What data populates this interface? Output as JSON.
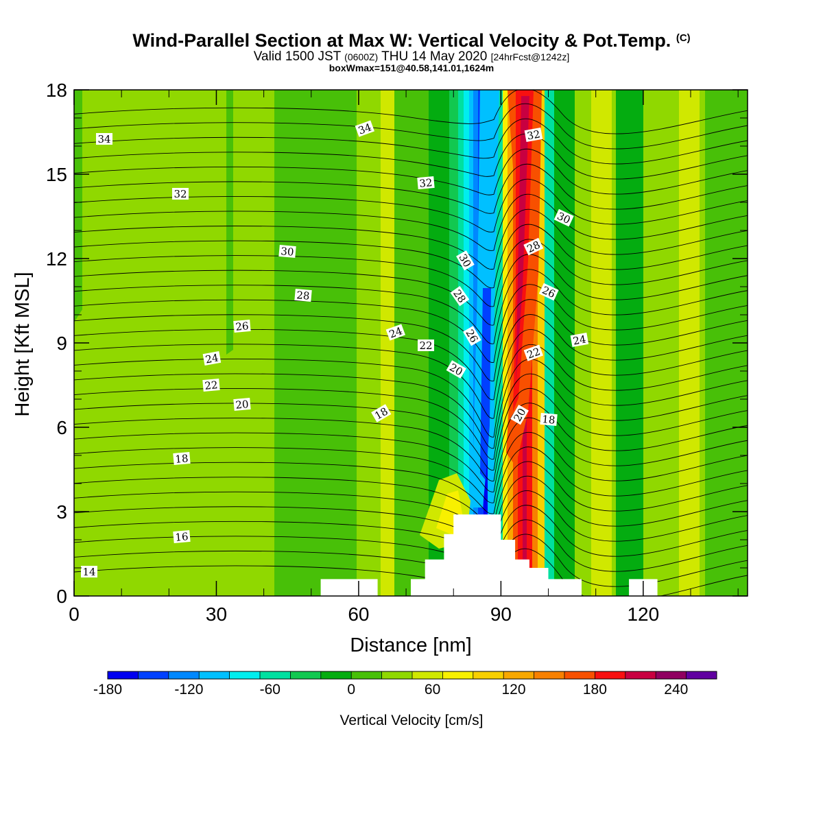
{
  "chart_data": {
    "type": "heatmap",
    "title": "Wind-Parallel Section at Max W: Vertical Velocity & Pot.Temp.",
    "title_mark": "(C)",
    "subtitle_main": "Valid 1500 JST",
    "subtitle_z": "(0600Z)",
    "subtitle_date": "THU 14 May 2020",
    "subtitle_fcst": "[24hrFcst@1242z]",
    "subtitle2": "boxWmax=151@40.58,141.01,1624m",
    "xlabel": "Distance [nm]",
    "ylabel": "Height [Kft MSL]",
    "xlim": [
      0,
      142
    ],
    "ylim": [
      0,
      18
    ],
    "x_ticks": [
      "0",
      "30",
      "60",
      "90",
      "120"
    ],
    "y_ticks": [
      "0",
      "3",
      "6",
      "9",
      "12",
      "15",
      "18"
    ],
    "colorbar": {
      "label": "Vertical Velocity [cm/s]",
      "tick_labels": [
        "-180",
        "-120",
        "-60",
        "0",
        "60",
        "120",
        "180",
        "240"
      ],
      "colors": [
        "#0000f0",
        "#0040ff",
        "#0088ff",
        "#00c0ff",
        "#00eeee",
        "#00e0a0",
        "#12c850",
        "#04ac10",
        "#48c008",
        "#90d800",
        "#d0e800",
        "#f8f000",
        "#f8d000",
        "#f8a800",
        "#f88000",
        "#f85000",
        "#f81010",
        "#c80040",
        "#900060",
        "#6000a0"
      ]
    },
    "potential_temperature_labels": [
      "34",
      "34",
      "32",
      "32",
      "32",
      "30",
      "30",
      "30",
      "28",
      "28",
      "28",
      "26",
      "26",
      "26",
      "24",
      "24",
      "24",
      "22",
      "22",
      "22",
      "20",
      "20",
      "20",
      "18",
      "18",
      "18",
      "16",
      "14"
    ],
    "terrain_nm_kft": [
      [
        0,
        0
      ],
      [
        52,
        0
      ],
      [
        52,
        0.6
      ],
      [
        64,
        0.6
      ],
      [
        64,
        0
      ],
      [
        71,
        0
      ],
      [
        71,
        0.6
      ],
      [
        74,
        0.6
      ],
      [
        74,
        1.3
      ],
      [
        78,
        1.3
      ],
      [
        78,
        2.2
      ],
      [
        80,
        2.2
      ],
      [
        80,
        2.9
      ],
      [
        90,
        2.9
      ],
      [
        90,
        2.0
      ],
      [
        93,
        2.0
      ],
      [
        93,
        1.3
      ],
      [
        96,
        1.3
      ],
      [
        96,
        1.0
      ],
      [
        100,
        1.0
      ],
      [
        100,
        0.6
      ],
      [
        107,
        0.6
      ],
      [
        107,
        0
      ],
      [
        117,
        0
      ],
      [
        117,
        0.6
      ],
      [
        123,
        0.6
      ],
      [
        123,
        0
      ],
      [
        142,
        0
      ]
    ],
    "vertical_velocity_updraft_peak_cms": 240,
    "vertical_velocity_downdraft_peak_cms": -180
  }
}
